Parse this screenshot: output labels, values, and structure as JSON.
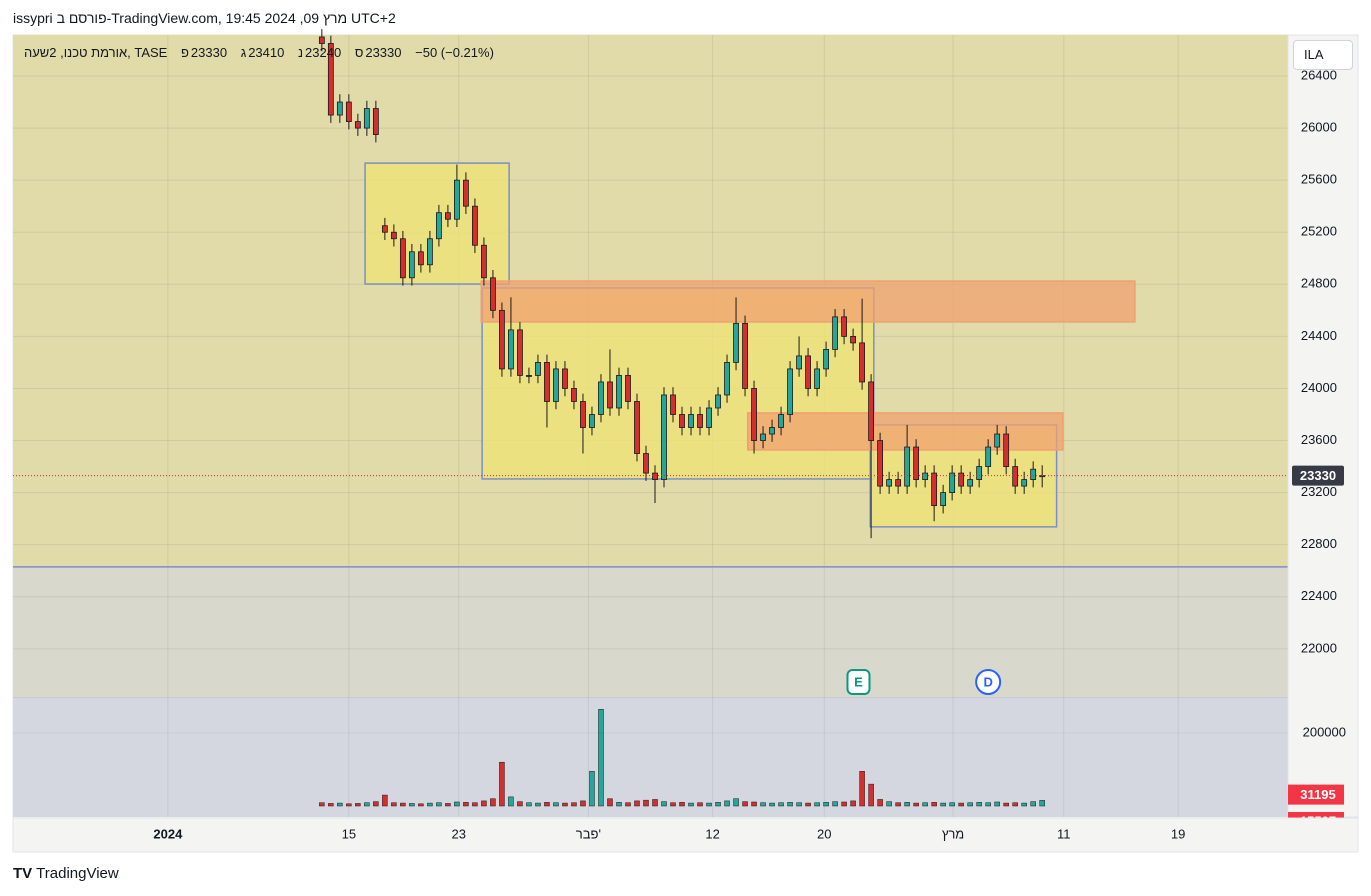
{
  "header": {
    "text": "issypri פורסם ב-TradingView.com, 19:45 2024 ,09 מרץ UTC+2",
    "button": "ILA",
    "logo": "TradingView"
  },
  "chart_data": {
    "type": "candlestick",
    "legend": {
      "symbol": "אורמת טכנו, 2שעה, TASE",
      "labels": [
        "פ",
        "ג",
        "נ",
        "ס"
      ],
      "change": "−50 (−0.21%)"
    },
    "x": [
      0,
      1,
      2,
      3,
      4,
      5,
      6,
      7,
      8,
      9,
      10,
      11,
      12,
      13,
      14,
      15,
      16,
      17,
      18,
      19,
      20,
      21,
      22,
      23,
      24,
      25,
      26,
      27,
      28,
      29,
      30,
      31,
      32,
      33,
      34,
      35,
      36,
      37,
      38,
      39,
      40,
      41,
      42,
      43,
      44,
      45,
      46,
      47,
      48,
      49,
      50,
      51,
      52,
      53,
      54,
      55,
      56,
      57,
      58,
      59,
      60,
      61,
      62,
      63,
      64,
      65,
      66,
      67,
      68,
      69,
      70,
      71,
      72,
      73,
      74,
      75,
      76,
      77,
      78,
      79,
      80
    ],
    "open": [
      26700,
      26650,
      26100,
      26200,
      26050,
      26000,
      26150,
      25250,
      25200,
      25150,
      24850,
      25050,
      24950,
      25150,
      25350,
      25300,
      25600,
      25400,
      25100,
      24850,
      24600,
      24150,
      24450,
      24100,
      24100,
      24200,
      23900,
      24150,
      24000,
      23900,
      23700,
      23800,
      24050,
      23850,
      24100,
      23900,
      23500,
      23350,
      23300,
      23950,
      23800,
      23700,
      23800,
      23700,
      23850,
      23950,
      24200,
      24500,
      24000,
      23600,
      23650,
      23700,
      23800,
      24150,
      24250,
      24000,
      24150,
      24300,
      24550,
      24400,
      24350,
      24050,
      23600,
      23250,
      23300,
      23250,
      23550,
      23300,
      23350,
      23100,
      23200,
      23350,
      23250,
      23300,
      23400,
      23550,
      23650,
      23400,
      23250,
      23300,
      23330
    ],
    "high": [
      26760,
      26710,
      26260,
      26260,
      26110,
      26210,
      26210,
      25310,
      25260,
      25210,
      25110,
      25110,
      25210,
      25410,
      25410,
      25720,
      25660,
      25460,
      25160,
      24910,
      24660,
      24700,
      24510,
      24160,
      24260,
      24260,
      24210,
      24210,
      24060,
      23960,
      23860,
      24110,
      24300,
      24160,
      24160,
      23960,
      23560,
      23410,
      24010,
      24010,
      23860,
      23860,
      23860,
      23910,
      24010,
      24260,
      24700,
      24560,
      24060,
      23710,
      23760,
      23860,
      24210,
      24400,
      24310,
      24210,
      24360,
      24610,
      24610,
      24460,
      24690,
      24110,
      23660,
      23360,
      23360,
      23720,
      23610,
      23410,
      23410,
      23260,
      23410,
      23410,
      23360,
      23460,
      23610,
      23720,
      23710,
      23460,
      23360,
      23440,
      23410
    ],
    "low": [
      26590,
      26040,
      26040,
      25990,
      25940,
      25940,
      25890,
      25140,
      25090,
      24790,
      24790,
      24890,
      24890,
      25090,
      25240,
      25240,
      25340,
      25040,
      24790,
      24540,
      24090,
      24090,
      24040,
      24040,
      24040,
      23700,
      23840,
      23940,
      23840,
      23500,
      23640,
      23740,
      23790,
      23790,
      23840,
      23440,
      23290,
      23120,
      23240,
      23740,
      23640,
      23640,
      23640,
      23640,
      23790,
      23890,
      24140,
      23940,
      23500,
      23540,
      23590,
      23640,
      23740,
      24090,
      23940,
      23940,
      24090,
      24240,
      24340,
      24290,
      23990,
      22850,
      23190,
      23190,
      23190,
      23190,
      23240,
      23240,
      22980,
      23040,
      23140,
      23190,
      23190,
      23240,
      23340,
      23490,
      23340,
      23190,
      23190,
      23240,
      23240
    ],
    "close": [
      26650,
      26100,
      26200,
      26050,
      26000,
      26150,
      25950,
      25200,
      25150,
      24850,
      25050,
      24950,
      25150,
      25350,
      25300,
      25600,
      25400,
      25100,
      24850,
      24600,
      24150,
      24450,
      24100,
      24100,
      24200,
      23900,
      24150,
      24000,
      23900,
      23700,
      23800,
      24050,
      23850,
      24100,
      23900,
      23500,
      23350,
      23300,
      23950,
      23800,
      23700,
      23800,
      23700,
      23850,
      23950,
      24200,
      24500,
      24000,
      23600,
      23650,
      23700,
      23800,
      24150,
      24250,
      24000,
      24150,
      24300,
      24550,
      24400,
      24350,
      24050,
      23600,
      23250,
      23300,
      23250,
      23550,
      23300,
      23350,
      23100,
      23200,
      23350,
      23250,
      23300,
      23400,
      23550,
      23650,
      23400,
      23250,
      23300,
      23380,
      23330
    ],
    "volume": [
      9000,
      7000,
      8000,
      6000,
      7000,
      9000,
      12000,
      30000,
      9000,
      8000,
      7000,
      6000,
      8000,
      9000,
      7000,
      11000,
      10000,
      9000,
      14000,
      20000,
      120000,
      25000,
      12000,
      9000,
      8000,
      10000,
      9000,
      8000,
      9000,
      14000,
      95000,
      265000,
      20000,
      10000,
      9000,
      14000,
      16000,
      18000,
      12000,
      9000,
      10000,
      8000,
      9000,
      8000,
      10000,
      14000,
      20000,
      12000,
      11000,
      9000,
      8000,
      9000,
      10000,
      9000,
      8000,
      9000,
      10000,
      12000,
      11000,
      14000,
      95000,
      60000,
      18000,
      12000,
      9000,
      10000,
      8000,
      9000,
      10000,
      8000,
      9000,
      8000,
      9000,
      10000,
      9000,
      11000,
      8000,
      9000,
      8000,
      12000,
      15507
    ],
    "volume_ma_value": 31195,
    "up_color": "#26a69a",
    "down_color": "#d32f2f",
    "xlim": [
      -34.3,
      107.3
    ],
    "xticks": [
      {
        "value": -17.1,
        "label": "2024"
      },
      {
        "value": 3,
        "label": "15"
      },
      {
        "value": 15.2,
        "label": "23"
      },
      {
        "value": 29.6,
        "label": "פבר'"
      },
      {
        "value": 43.4,
        "label": "12"
      },
      {
        "value": 55.8,
        "label": "20"
      },
      {
        "value": 70.1,
        "label": "מרץ"
      },
      {
        "value": 82.4,
        "label": "11"
      },
      {
        "value": 95.1,
        "label": "19"
      }
    ],
    "ylim": [
      21630,
      26715
    ],
    "yticks": [
      22000,
      22400,
      22800,
      23200,
      23600,
      24000,
      24400,
      24800,
      25200,
      25600,
      26000,
      26400
    ],
    "volume_ylim": [
      0,
      296000
    ],
    "volume_yticks": [
      200000
    ],
    "shade_level": 22630,
    "upper_bg": "#e0dba8",
    "lower_bg": "#d9d8cc",
    "zones": [
      {
        "x": [
          4.8,
          20.8
        ],
        "y": [
          24802,
          25731
        ],
        "fill": "#ece27a",
        "stroke": "#7b8fc7"
      },
      {
        "x": [
          17.8,
          61.3
        ],
        "y": [
          23305,
          24772
        ],
        "fill": "#ece27a",
        "stroke": "#7b8fc7"
      },
      {
        "x": [
          60.9,
          81.6
        ],
        "y": [
          22937,
          23720
        ],
        "fill": "#ece27a",
        "stroke": "#7b8fc7"
      },
      {
        "x": [
          17.7,
          90.3
        ],
        "y": [
          24511,
          24825
        ],
        "fill": "#f0a070",
        "stroke": "#f0a070"
      },
      {
        "x": [
          47.3,
          82.3
        ],
        "y": [
          23528,
          23812
        ],
        "fill": "#f0a070",
        "stroke": "#f0a070"
      }
    ],
    "events": [
      {
        "x": 59.6,
        "label": "E",
        "color": "#089981"
      },
      {
        "x": 74,
        "label": "D",
        "color": "#2962ff"
      }
    ],
    "grid": true
  }
}
